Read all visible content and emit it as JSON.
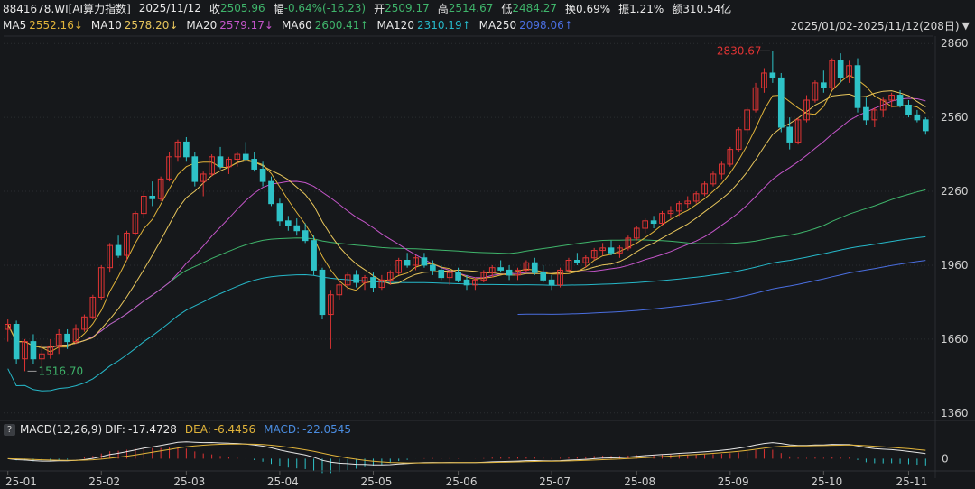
{
  "header": {
    "code": "8841678.WI[AI算力指数]",
    "date": "2025/11/12",
    "close_label": "收",
    "close": "2505.96",
    "change_label": "幅",
    "change": "-0.64%(-16.23)",
    "open_label": "开",
    "open": "2509.17",
    "high_label": "高",
    "high": "2514.67",
    "low_label": "低",
    "low": "2484.27",
    "turnover": "换0.69%",
    "amplitude": "振1.21%",
    "amount": "额310.54亿"
  },
  "ma_legend": [
    {
      "label": "MA5",
      "value": "2552.16↓",
      "color": "#e8e8e8",
      "value_color": "#e0b33a"
    },
    {
      "label": "MA10",
      "value": "2578.20↓",
      "color": "#e8e8e8",
      "value_color": "#e8c65c"
    },
    {
      "label": "MA20",
      "value": "2579.17↓",
      "color": "#e8e8e8",
      "value_color": "#c455c9"
    },
    {
      "label": "MA60",
      "value": "2600.41↑",
      "color": "#e8e8e8",
      "value_color": "#3fb56b"
    },
    {
      "label": "MA120",
      "value": "2310.19↑",
      "color": "#e8e8e8",
      "value_color": "#26b8c9"
    },
    {
      "label": "MA250",
      "value": "2098.06↑",
      "color": "#e8e8e8",
      "value_color": "#4a6ee0"
    }
  ],
  "range": "2025/01/02-2025/11/12(208日)",
  "range_toggle": "▼",
  "macd": {
    "help": "?",
    "title": "MACD(12,26,9)",
    "dif_label": "DIF:",
    "dif": "-17.4728",
    "dea_label": "DEA:",
    "dea": "-6.4456",
    "macd_label": "MACD:",
    "macd": "-22.0545",
    "zero_tick": "0"
  },
  "annotations": {
    "high_mark": "2830.67",
    "low_mark": "1516.70"
  },
  "colors": {
    "up": "#e03434",
    "down": "#2ec2c7",
    "bg": "#16181b",
    "grid": "#2a2d31",
    "high_text": "#e03434",
    "low_text": "#3fb56b",
    "dif_color": "#e6e6e6",
    "dea_color": "#e0b33a",
    "macd_color": "#4a8ce0"
  },
  "chart_data": {
    "type": "candlestick",
    "y_ticks": [
      2860,
      2560,
      2260,
      1960,
      1660,
      1360
    ],
    "ylim": [
      1330,
      2890
    ],
    "x_ticks": [
      "25-01",
      "25-02",
      "25-03",
      "25-04",
      "25-05",
      "25-06",
      "25-07",
      "25-08",
      "25-09",
      "25-10",
      "25-11"
    ],
    "macd_ticks": [
      "0"
    ],
    "candles": [
      [
        1700,
        1740,
        1650,
        1720
      ],
      [
        1720,
        1735,
        1560,
        1580
      ],
      [
        1580,
        1660,
        1530,
        1650
      ],
      [
        1650,
        1680,
        1560,
        1580
      ],
      [
        1580,
        1640,
        1540,
        1600
      ],
      [
        1600,
        1660,
        1580,
        1630
      ],
      [
        1630,
        1700,
        1600,
        1680
      ],
      [
        1680,
        1700,
        1620,
        1650
      ],
      [
        1650,
        1720,
        1640,
        1700
      ],
      [
        1700,
        1760,
        1690,
        1750
      ],
      [
        1750,
        1840,
        1740,
        1830
      ],
      [
        1830,
        1960,
        1820,
        1950
      ],
      [
        1950,
        2050,
        1930,
        2040
      ],
      [
        2040,
        2080,
        1990,
        2000
      ],
      [
        2000,
        2100,
        1980,
        2090
      ],
      [
        2090,
        2180,
        2080,
        2170
      ],
      [
        2170,
        2260,
        2150,
        2240
      ],
      [
        2240,
        2300,
        2200,
        2230
      ],
      [
        2230,
        2320,
        2220,
        2310
      ],
      [
        2310,
        2420,
        2300,
        2400
      ],
      [
        2400,
        2470,
        2380,
        2460
      ],
      [
        2460,
        2480,
        2380,
        2400
      ],
      [
        2400,
        2420,
        2280,
        2300
      ],
      [
        2300,
        2340,
        2240,
        2330
      ],
      [
        2330,
        2410,
        2320,
        2400
      ],
      [
        2400,
        2440,
        2350,
        2360
      ],
      [
        2360,
        2400,
        2330,
        2390
      ],
      [
        2390,
        2420,
        2360,
        2410
      ],
      [
        2410,
        2460,
        2380,
        2390
      ],
      [
        2390,
        2420,
        2340,
        2350
      ],
      [
        2350,
        2380,
        2280,
        2300
      ],
      [
        2300,
        2320,
        2200,
        2210
      ],
      [
        2210,
        2230,
        2120,
        2140
      ],
      [
        2140,
        2160,
        2100,
        2120
      ],
      [
        2120,
        2150,
        2080,
        2100
      ],
      [
        2100,
        2130,
        2050,
        2060
      ],
      [
        2060,
        2080,
        1920,
        1940
      ],
      [
        1940,
        1950,
        1740,
        1760
      ],
      [
        1760,
        1860,
        1620,
        1840
      ],
      [
        1840,
        1900,
        1820,
        1880
      ],
      [
        1880,
        1930,
        1860,
        1920
      ],
      [
        1920,
        1940,
        1870,
        1890
      ],
      [
        1890,
        1920,
        1860,
        1910
      ],
      [
        1910,
        1930,
        1850,
        1870
      ],
      [
        1870,
        1920,
        1860,
        1900
      ],
      [
        1900,
        1940,
        1880,
        1930
      ],
      [
        1930,
        1990,
        1920,
        1980
      ],
      [
        1980,
        2010,
        1950,
        1960
      ],
      [
        1960,
        2000,
        1940,
        1990
      ],
      [
        1990,
        2010,
        1950,
        1960
      ],
      [
        1960,
        1980,
        1920,
        1940
      ],
      [
        1940,
        1960,
        1900,
        1910
      ],
      [
        1910,
        1940,
        1880,
        1930
      ],
      [
        1930,
        1950,
        1890,
        1900
      ],
      [
        1900,
        1920,
        1860,
        1880
      ],
      [
        1880,
        1910,
        1860,
        1900
      ],
      [
        1900,
        1940,
        1890,
        1930
      ],
      [
        1930,
        1960,
        1910,
        1950
      ],
      [
        1950,
        1980,
        1930,
        1940
      ],
      [
        1940,
        1960,
        1900,
        1920
      ],
      [
        1920,
        1950,
        1900,
        1940
      ],
      [
        1940,
        1980,
        1930,
        1970
      ],
      [
        1970,
        1990,
        1920,
        1930
      ],
      [
        1930,
        1960,
        1890,
        1900
      ],
      [
        1900,
        1920,
        1860,
        1880
      ],
      [
        1880,
        1950,
        1870,
        1940
      ],
      [
        1940,
        1990,
        1930,
        1980
      ],
      [
        1980,
        2010,
        1960,
        1970
      ],
      [
        1970,
        2000,
        1950,
        1990
      ],
      [
        1990,
        2030,
        1980,
        2020
      ],
      [
        2020,
        2050,
        2000,
        2030
      ],
      [
        2030,
        2060,
        2000,
        2010
      ],
      [
        2010,
        2040,
        1990,
        2030
      ],
      [
        2030,
        2080,
        2020,
        2070
      ],
      [
        2070,
        2120,
        2060,
        2110
      ],
      [
        2110,
        2150,
        2090,
        2140
      ],
      [
        2140,
        2160,
        2110,
        2130
      ],
      [
        2130,
        2180,
        2120,
        2170
      ],
      [
        2170,
        2200,
        2150,
        2180
      ],
      [
        2180,
        2220,
        2160,
        2210
      ],
      [
        2210,
        2240,
        2190,
        2220
      ],
      [
        2220,
        2260,
        2210,
        2250
      ],
      [
        2250,
        2300,
        2240,
        2290
      ],
      [
        2290,
        2340,
        2280,
        2330
      ],
      [
        2330,
        2380,
        2310,
        2370
      ],
      [
        2370,
        2440,
        2360,
        2430
      ],
      [
        2430,
        2520,
        2420,
        2510
      ],
      [
        2510,
        2600,
        2490,
        2590
      ],
      [
        2590,
        2700,
        2580,
        2680
      ],
      [
        2680,
        2760,
        2660,
        2740
      ],
      [
        2740,
        2830,
        2700,
        2720
      ],
      [
        2720,
        2740,
        2500,
        2520
      ],
      [
        2520,
        2560,
        2430,
        2460
      ],
      [
        2460,
        2560,
        2450,
        2550
      ],
      [
        2550,
        2650,
        2540,
        2630
      ],
      [
        2630,
        2710,
        2620,
        2700
      ],
      [
        2700,
        2750,
        2660,
        2680
      ],
      [
        2680,
        2800,
        2670,
        2790
      ],
      [
        2790,
        2820,
        2700,
        2720
      ],
      [
        2720,
        2790,
        2700,
        2770
      ],
      [
        2770,
        2800,
        2580,
        2600
      ],
      [
        2600,
        2640,
        2530,
        2550
      ],
      [
        2550,
        2600,
        2520,
        2590
      ],
      [
        2590,
        2640,
        2560,
        2630
      ],
      [
        2630,
        2660,
        2600,
        2650
      ],
      [
        2650,
        2670,
        2600,
        2610
      ],
      [
        2610,
        2630,
        2560,
        2570
      ],
      [
        2570,
        2590,
        2540,
        2550
      ],
      [
        2550,
        2560,
        2490,
        2506
      ]
    ]
  }
}
